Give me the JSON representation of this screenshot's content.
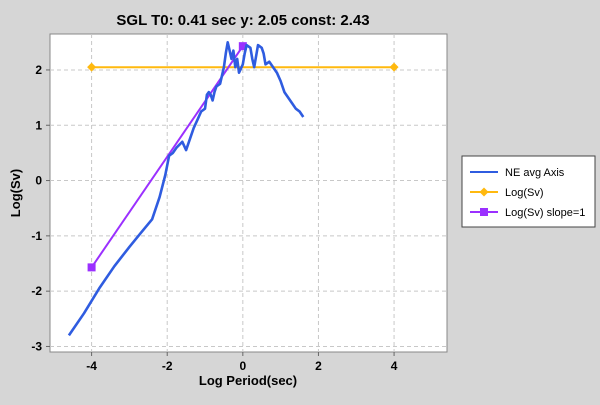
{
  "chart_data": {
    "type": "line",
    "title": "SGL T0: 0.41 sec  y: 2.05 const: 2.43",
    "xlabel": "Log Period(sec)",
    "ylabel": "Log(Sv)",
    "xlim": [
      -5.1,
      5.4
    ],
    "ylim": [
      -3.1,
      2.65
    ],
    "xticks": [
      -4,
      -2,
      0,
      2,
      4
    ],
    "yticks": [
      -3,
      -2,
      -1,
      0,
      1,
      2
    ],
    "xtick_labels": [
      "-4",
      "-2",
      "0",
      "2",
      "4"
    ],
    "ytick_labels": [
      "-3",
      "-2",
      "-1",
      "0",
      "1",
      "2"
    ],
    "grid": true,
    "legend_position": "right",
    "series": [
      {
        "name": "NE avg Axis",
        "color": "#2f5ce0",
        "marker": "none",
        "x": [
          -4.6,
          -4.2,
          -3.8,
          -3.4,
          -3.0,
          -2.7,
          -2.4,
          -2.2,
          -2.05,
          -1.95,
          -1.85,
          -1.75,
          -1.6,
          -1.5,
          -1.4,
          -1.3,
          -1.2,
          -1.1,
          -1.0,
          -0.95,
          -0.9,
          -0.85,
          -0.8,
          -0.75,
          -0.7,
          -0.6,
          -0.5,
          -0.45,
          -0.4,
          -0.35,
          -0.3,
          -0.25,
          -0.2,
          -0.15,
          -0.1,
          0.0,
          0.05,
          0.1,
          0.2,
          0.25,
          0.3,
          0.4,
          0.5,
          0.55,
          0.6,
          0.7,
          0.8,
          0.9,
          1.0,
          1.1,
          1.2,
          1.3,
          1.4,
          1.5,
          1.6
        ],
        "y": [
          -2.8,
          -2.4,
          -1.95,
          -1.55,
          -1.2,
          -0.95,
          -0.7,
          -0.3,
          0.1,
          0.45,
          0.5,
          0.6,
          0.7,
          0.55,
          0.75,
          0.95,
          1.1,
          1.25,
          1.3,
          1.55,
          1.6,
          1.55,
          1.45,
          1.6,
          1.7,
          1.75,
          2.05,
          2.3,
          2.5,
          2.35,
          2.2,
          2.35,
          2.05,
          2.2,
          1.95,
          2.1,
          2.3,
          2.45,
          2.4,
          2.2,
          2.05,
          2.45,
          2.4,
          2.3,
          2.1,
          2.15,
          2.05,
          1.95,
          1.8,
          1.6,
          1.5,
          1.4,
          1.3,
          1.25,
          1.15
        ]
      },
      {
        "name": "Log(Sv)",
        "color": "#ffb90f",
        "marker": "diamond",
        "x": [
          -4.0,
          4.0
        ],
        "y": [
          2.05,
          2.05
        ]
      },
      {
        "name": "Log(Sv) slope=1",
        "color": "#9b30ff",
        "marker": "square",
        "x": [
          -4.0,
          0.0
        ],
        "y": [
          -1.57,
          2.43
        ]
      }
    ]
  }
}
